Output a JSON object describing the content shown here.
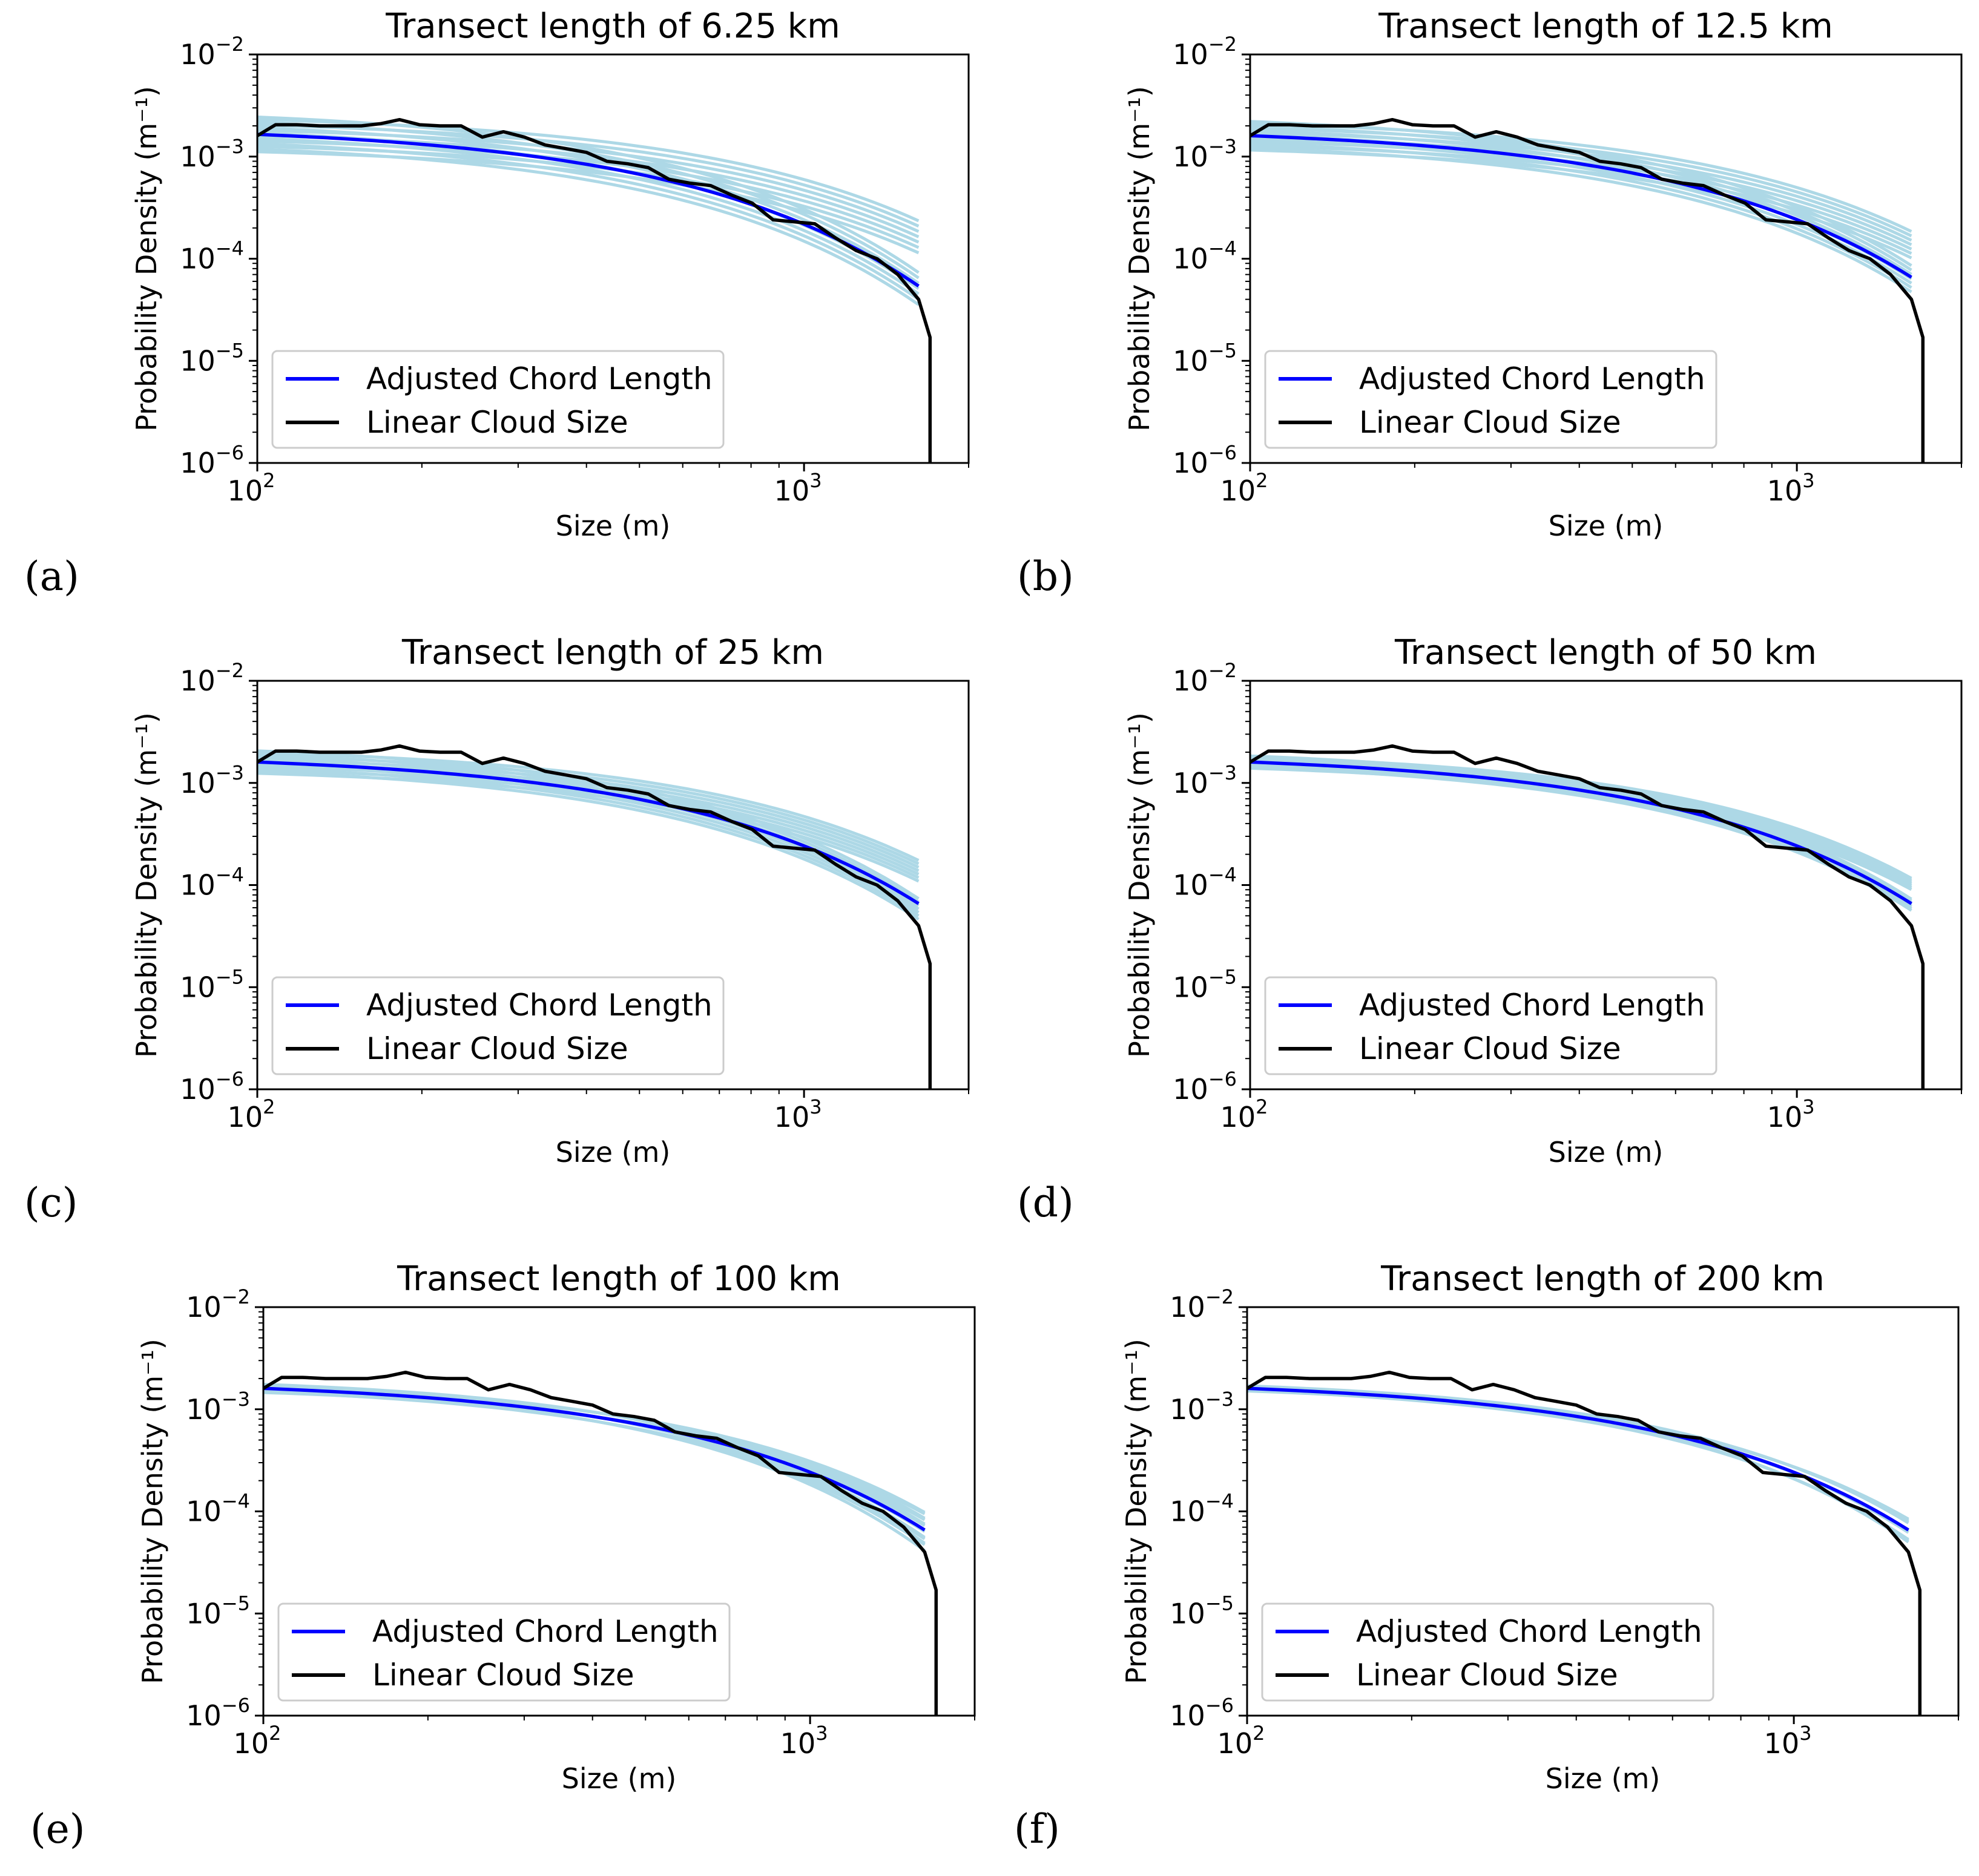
{
  "figure": {
    "colors": {
      "adjusted": "#0000ff",
      "linear": "#000000",
      "samples": "#add8e6"
    }
  },
  "chart_data": [
    {
      "panel_letter": "(a)",
      "type": "line",
      "title": "Transect length of 6.25 km",
      "xlabel": "Size (m)",
      "ylabel": "Probability Density (m⁻¹)",
      "xscale": "log",
      "yscale": "log",
      "xlim": [
        100,
        2000
      ],
      "ylim": [
        1e-06,
        0.01
      ],
      "xticks": [
        {
          "base": "10",
          "exp": "2"
        },
        {
          "base": "10",
          "exp": "3"
        }
      ],
      "yticks": [
        {
          "base": "10",
          "exp": "−6"
        },
        {
          "base": "10",
          "exp": "−5"
        },
        {
          "base": "10",
          "exp": "−4"
        },
        {
          "base": "10",
          "exp": "−3"
        },
        {
          "base": "10",
          "exp": "−2"
        }
      ],
      "legend": {
        "position": "lower-left",
        "entries": [
          "Adjusted Chord Length",
          "Linear Cloud Size"
        ]
      },
      "fit_curve": {
        "c": 0.00165,
        "k": 0.00225,
        "x0": 100,
        "xmax": 1620
      },
      "sample_curves": {
        "range": 0.34,
        "kmin": 0.0015,
        "kmax": 0.003,
        "count": 14
      },
      "series": [
        {
          "name": "Linear Cloud Size",
          "x": [
            100,
            108,
            118,
            130,
            142,
            155,
            168,
            182,
            198,
            216,
            236,
            258,
            282,
            308,
            336,
            366,
            400,
            436,
            476,
            519,
            566,
            618,
            675,
            737,
            804,
            878,
            958,
            1046,
            1142,
            1246,
            1360,
            1484,
            1620,
            1700,
            1700
          ],
          "y": [
            0.0016,
            0.00205,
            0.00205,
            0.002,
            0.002,
            0.002,
            0.0021,
            0.0023,
            0.00205,
            0.002,
            0.002,
            0.00155,
            0.00175,
            0.00155,
            0.0013,
            0.0012,
            0.0011,
            0.0009,
            0.00085,
            0.00078,
            0.0006,
            0.00055,
            0.00052,
            0.00042,
            0.00035,
            0.00024,
            0.00023,
            0.00022,
            0.00016,
            0.00012,
            0.0001,
            7e-05,
            4e-05,
            1.7e-05,
            1e-06
          ]
        }
      ]
    },
    {
      "panel_letter": "(b)",
      "type": "line",
      "title": "Transect length of 12.5 km",
      "xlabel": "Size (m)",
      "ylabel": "Probability Density (m⁻¹)",
      "xscale": "log",
      "yscale": "log",
      "xlim": [
        100,
        2000
      ],
      "ylim": [
        1e-06,
        0.01
      ],
      "xticks": [
        {
          "base": "10",
          "exp": "2"
        },
        {
          "base": "10",
          "exp": "3"
        }
      ],
      "yticks": [
        {
          "base": "10",
          "exp": "−6"
        },
        {
          "base": "10",
          "exp": "−5"
        },
        {
          "base": "10",
          "exp": "−4"
        },
        {
          "base": "10",
          "exp": "−3"
        },
        {
          "base": "10",
          "exp": "−2"
        }
      ],
      "legend": {
        "position": "lower-left",
        "entries": [
          "Adjusted Chord Length",
          "Linear Cloud Size"
        ]
      },
      "fit_curve": {
        "c": 0.0016,
        "k": 0.0021,
        "x0": 100,
        "xmax": 1620
      },
      "sample_curves": {
        "range": 0.28,
        "kmin": 0.0016,
        "kmax": 0.0026,
        "count": 14
      },
      "series": [
        {
          "name": "Linear Cloud Size",
          "x": [
            100,
            108,
            118,
            130,
            142,
            155,
            168,
            182,
            198,
            216,
            236,
            258,
            282,
            308,
            336,
            366,
            400,
            436,
            476,
            519,
            566,
            618,
            675,
            737,
            804,
            878,
            958,
            1046,
            1142,
            1246,
            1360,
            1484,
            1620,
            1700,
            1700
          ],
          "y": [
            0.0016,
            0.00205,
            0.00205,
            0.002,
            0.002,
            0.002,
            0.0021,
            0.0023,
            0.00205,
            0.002,
            0.002,
            0.00155,
            0.00175,
            0.00155,
            0.0013,
            0.0012,
            0.0011,
            0.0009,
            0.00085,
            0.00078,
            0.0006,
            0.00055,
            0.00052,
            0.00042,
            0.00035,
            0.00024,
            0.00023,
            0.00022,
            0.00016,
            0.00012,
            0.0001,
            7e-05,
            4e-05,
            1.7e-05,
            1e-06
          ]
        }
      ]
    },
    {
      "panel_letter": "(c)",
      "type": "line",
      "title": "Transect length of 25 km",
      "xlabel": "Size (m)",
      "ylabel": "Probability Density (m⁻¹)",
      "xscale": "log",
      "yscale": "log",
      "xlim": [
        100,
        2000
      ],
      "ylim": [
        1e-06,
        0.01
      ],
      "xticks": [
        {
          "base": "10",
          "exp": "2"
        },
        {
          "base": "10",
          "exp": "3"
        }
      ],
      "yticks": [
        {
          "base": "10",
          "exp": "−6"
        },
        {
          "base": "10",
          "exp": "−5"
        },
        {
          "base": "10",
          "exp": "−4"
        },
        {
          "base": "10",
          "exp": "−3"
        },
        {
          "base": "10",
          "exp": "−2"
        }
      ],
      "legend": {
        "position": "lower-left",
        "entries": [
          "Adjusted Chord Length",
          "Linear Cloud Size"
        ]
      },
      "fit_curve": {
        "c": 0.0016,
        "k": 0.0021,
        "x0": 100,
        "xmax": 1620
      },
      "sample_curves": {
        "range": 0.22,
        "kmin": 0.0016,
        "kmax": 0.0027,
        "count": 14
      },
      "series": [
        {
          "name": "Linear Cloud Size",
          "x": [
            100,
            108,
            118,
            130,
            142,
            155,
            168,
            182,
            198,
            216,
            236,
            258,
            282,
            308,
            336,
            366,
            400,
            436,
            476,
            519,
            566,
            618,
            675,
            737,
            804,
            878,
            958,
            1046,
            1142,
            1246,
            1360,
            1484,
            1620,
            1700,
            1700
          ],
          "y": [
            0.0016,
            0.00205,
            0.00205,
            0.002,
            0.002,
            0.002,
            0.0021,
            0.0023,
            0.00205,
            0.002,
            0.002,
            0.00155,
            0.00175,
            0.00155,
            0.0013,
            0.0012,
            0.0011,
            0.0009,
            0.00085,
            0.00078,
            0.0006,
            0.00055,
            0.00052,
            0.00042,
            0.00035,
            0.00024,
            0.00023,
            0.00022,
            0.00016,
            0.00012,
            0.0001,
            7e-05,
            4e-05,
            1.7e-05,
            1e-06
          ]
        }
      ]
    },
    {
      "panel_letter": "(d)",
      "type": "line",
      "title": "Transect length of 50 km",
      "xlabel": "Size (m)",
      "ylabel": "Probability Density (m⁻¹)",
      "xscale": "log",
      "yscale": "log",
      "xlim": [
        100,
        2000
      ],
      "ylim": [
        1e-06,
        0.01
      ],
      "xticks": [
        {
          "base": "10",
          "exp": "2"
        },
        {
          "base": "10",
          "exp": "3"
        }
      ],
      "yticks": [
        {
          "base": "10",
          "exp": "−6"
        },
        {
          "base": "10",
          "exp": "−5"
        },
        {
          "base": "10",
          "exp": "−4"
        },
        {
          "base": "10",
          "exp": "−3"
        },
        {
          "base": "10",
          "exp": "−2"
        }
      ],
      "legend": {
        "position": "lower-left",
        "entries": [
          "Adjusted Chord Length",
          "Linear Cloud Size"
        ]
      },
      "fit_curve": {
        "c": 0.0016,
        "k": 0.0021,
        "x0": 100,
        "xmax": 1620
      },
      "sample_curves": {
        "range": 0.12,
        "kmin": 0.0018,
        "kmax": 0.0024,
        "count": 14
      },
      "series": [
        {
          "name": "Linear Cloud Size",
          "x": [
            100,
            108,
            118,
            130,
            142,
            155,
            168,
            182,
            198,
            216,
            236,
            258,
            282,
            308,
            336,
            366,
            400,
            436,
            476,
            519,
            566,
            618,
            675,
            737,
            804,
            878,
            958,
            1046,
            1142,
            1246,
            1360,
            1484,
            1620,
            1700,
            1700
          ],
          "y": [
            0.0016,
            0.00205,
            0.00205,
            0.002,
            0.002,
            0.002,
            0.0021,
            0.0023,
            0.00205,
            0.002,
            0.002,
            0.00155,
            0.00175,
            0.00155,
            0.0013,
            0.0012,
            0.0011,
            0.0009,
            0.00085,
            0.00078,
            0.0006,
            0.00055,
            0.00052,
            0.00042,
            0.00035,
            0.00024,
            0.00023,
            0.00022,
            0.00016,
            0.00012,
            0.0001,
            7e-05,
            4e-05,
            1.7e-05,
            1e-06
          ]
        }
      ]
    },
    {
      "panel_letter": "(e)",
      "type": "line",
      "title": "Transect length of 100 km",
      "xlabel": "Size (m)",
      "ylabel": "Probability Density (m⁻¹)",
      "xscale": "log",
      "yscale": "log",
      "xlim": [
        100,
        2000
      ],
      "ylim": [
        1e-06,
        0.01
      ],
      "xticks": [
        {
          "base": "10",
          "exp": "2"
        },
        {
          "base": "10",
          "exp": "3"
        }
      ],
      "yticks": [
        {
          "base": "10",
          "exp": "−6"
        },
        {
          "base": "10",
          "exp": "−5"
        },
        {
          "base": "10",
          "exp": "−4"
        },
        {
          "base": "10",
          "exp": "−3"
        },
        {
          "base": "10",
          "exp": "−2"
        }
      ],
      "legend": {
        "position": "lower-left",
        "entries": [
          "Adjusted Chord Length",
          "Linear Cloud Size"
        ]
      },
      "fit_curve": {
        "c": 0.0016,
        "k": 0.0021,
        "x0": 100,
        "xmax": 1620
      },
      "sample_curves": {
        "range": 0.08,
        "kmin": 0.0018,
        "kmax": 0.0024,
        "count": 12
      },
      "series": [
        {
          "name": "Linear Cloud Size",
          "x": [
            100,
            108,
            118,
            130,
            142,
            155,
            168,
            182,
            198,
            216,
            236,
            258,
            282,
            308,
            336,
            366,
            400,
            436,
            476,
            519,
            566,
            618,
            675,
            737,
            804,
            878,
            958,
            1046,
            1142,
            1246,
            1360,
            1484,
            1620,
            1700,
            1700
          ],
          "y": [
            0.0016,
            0.00205,
            0.00205,
            0.002,
            0.002,
            0.002,
            0.0021,
            0.0023,
            0.00205,
            0.002,
            0.002,
            0.00155,
            0.00175,
            0.00155,
            0.0013,
            0.0012,
            0.0011,
            0.0009,
            0.00085,
            0.00078,
            0.0006,
            0.00055,
            0.00052,
            0.00042,
            0.00035,
            0.00024,
            0.00023,
            0.00022,
            0.00016,
            0.00012,
            0.0001,
            7e-05,
            4e-05,
            1.7e-05,
            1e-06
          ]
        }
      ]
    },
    {
      "panel_letter": "(f)",
      "type": "line",
      "title": "Transect length of 200 km",
      "xlabel": "Size (m)",
      "ylabel": "Probability Density (m⁻¹)",
      "xscale": "log",
      "yscale": "log",
      "xlim": [
        100,
        2000
      ],
      "ylim": [
        1e-06,
        0.01
      ],
      "xticks": [
        {
          "base": "10",
          "exp": "2"
        },
        {
          "base": "10",
          "exp": "3"
        }
      ],
      "yticks": [
        {
          "base": "10",
          "exp": "−6"
        },
        {
          "base": "10",
          "exp": "−5"
        },
        {
          "base": "10",
          "exp": "−4"
        },
        {
          "base": "10",
          "exp": "−3"
        },
        {
          "base": "10",
          "exp": "−2"
        }
      ],
      "legend": {
        "position": "lower-left",
        "entries": [
          "Adjusted Chord Length",
          "Linear Cloud Size"
        ]
      },
      "fit_curve": {
        "c": 0.0016,
        "k": 0.0021,
        "x0": 100,
        "xmax": 1620
      },
      "sample_curves": {
        "range": 0.05,
        "kmin": 0.0019,
        "kmax": 0.0023,
        "count": 10
      },
      "series": [
        {
          "name": "Linear Cloud Size",
          "x": [
            100,
            108,
            118,
            130,
            142,
            155,
            168,
            182,
            198,
            216,
            236,
            258,
            282,
            308,
            336,
            366,
            400,
            436,
            476,
            519,
            566,
            618,
            675,
            737,
            804,
            878,
            958,
            1046,
            1142,
            1246,
            1360,
            1484,
            1620,
            1700,
            1700
          ],
          "y": [
            0.0016,
            0.00205,
            0.00205,
            0.002,
            0.002,
            0.002,
            0.0021,
            0.0023,
            0.00205,
            0.002,
            0.002,
            0.00155,
            0.00175,
            0.00155,
            0.0013,
            0.0012,
            0.0011,
            0.0009,
            0.00085,
            0.00078,
            0.0006,
            0.00055,
            0.00052,
            0.00042,
            0.00035,
            0.00024,
            0.00023,
            0.00022,
            0.00016,
            0.00012,
            0.0001,
            7e-05,
            4e-05,
            1.7e-05,
            1e-06
          ]
        }
      ]
    }
  ]
}
